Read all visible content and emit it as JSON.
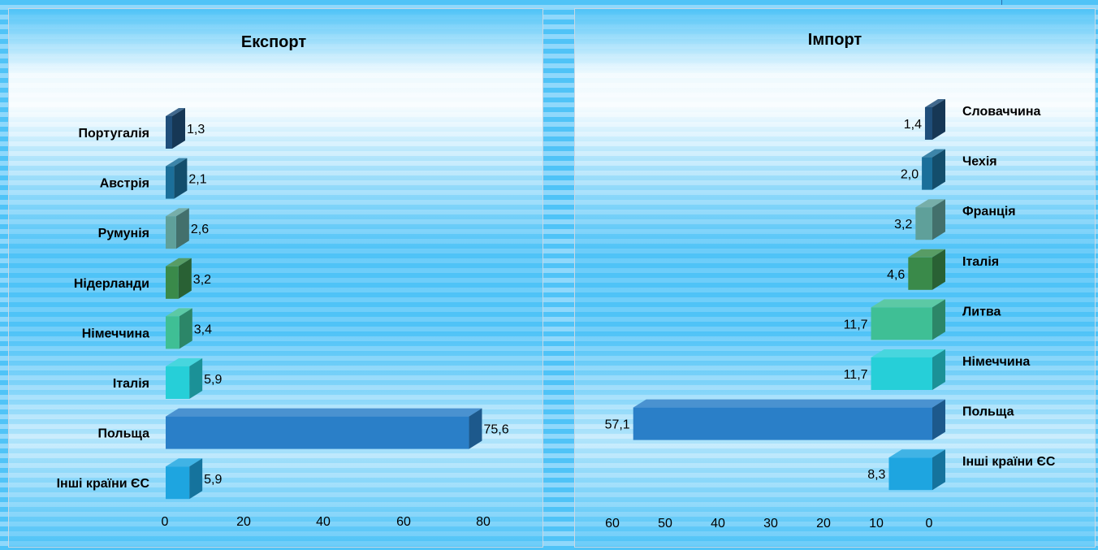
{
  "chart_data": [
    {
      "type": "bar",
      "orientation": "horizontal",
      "title": "Експорт",
      "categories": [
        "Португалія",
        "Австрія",
        "Румунія",
        "Нідерланди",
        "Німеччина",
        "Італія",
        "Польща",
        "Інші країни ЄС"
      ],
      "values": [
        1.3,
        2.1,
        2.6,
        3.2,
        3.4,
        5.9,
        75.6,
        5.9
      ],
      "value_labels": [
        "1,3",
        "2,1",
        "2,6",
        "3,2",
        "3,4",
        "5,9",
        "75,6",
        "5,9"
      ],
      "bar_colors": [
        "#1f4e7a",
        "#1b6f9a",
        "#5fa09a",
        "#3a8a4a",
        "#3fbf95",
        "#26cfd8",
        "#2a7fc8",
        "#1ea5e0"
      ],
      "xlim": [
        0,
        80
      ],
      "x_ticks": [
        "0",
        "20",
        "40",
        "60",
        "80"
      ],
      "grid": false,
      "legend": "none"
    },
    {
      "type": "bar",
      "orientation": "horizontal",
      "x_reversed": true,
      "title": "Імпорт",
      "categories": [
        "Словаччина",
        "Чехія",
        "Франція",
        "Італія",
        "Литва",
        "Німеччина",
        "Польща",
        "Інші країни ЄС"
      ],
      "values": [
        1.4,
        2.0,
        3.2,
        4.6,
        11.7,
        11.7,
        57.1,
        8.3
      ],
      "value_labels": [
        "1,4",
        "2,0",
        "3,2",
        "4,6",
        "11,7",
        "11,7",
        "57,1",
        "8,3"
      ],
      "bar_colors": [
        "#1f4e7a",
        "#1b6f9a",
        "#5fa09a",
        "#3a8a4a",
        "#3fbf95",
        "#26cfd8",
        "#2a7fc8",
        "#1ea5e0"
      ],
      "xlim": [
        0,
        60
      ],
      "x_ticks": [
        "60",
        "50",
        "40",
        "30",
        "20",
        "10",
        "0"
      ],
      "grid": false,
      "legend": "none"
    }
  ]
}
